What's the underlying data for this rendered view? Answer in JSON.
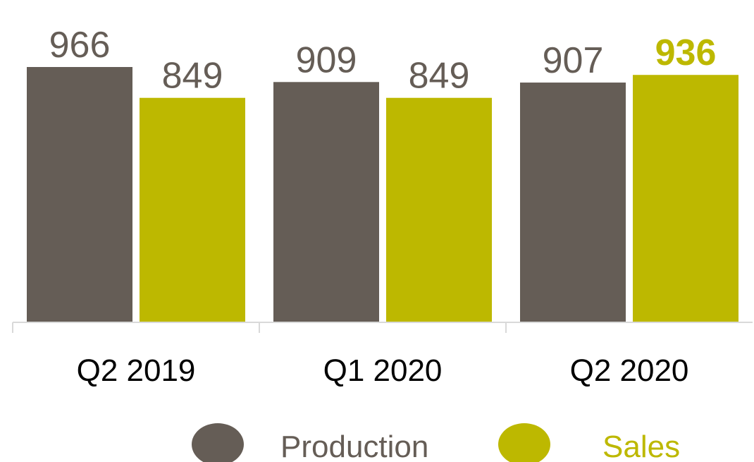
{
  "chart_data": {
    "type": "bar",
    "categories": [
      "Q2 2019",
      "Q1 2020",
      "Q2 2020"
    ],
    "series": [
      {
        "name": "Production",
        "values": [
          966,
          909,
          907
        ],
        "color": "#655D56"
      },
      {
        "name": "Sales",
        "values": [
          849,
          849,
          936
        ],
        "color": "#BDB800"
      }
    ],
    "data_labels": {
      "Production": [
        "966",
        "909",
        "907"
      ],
      "Sales": [
        "849",
        "849",
        "936"
      ]
    },
    "emphasized_label": {
      "series": "Sales",
      "category": "Q2 2020",
      "bold": true
    },
    "ylim": [
      0,
      966
    ],
    "grid": false,
    "legend": {
      "placement": "bottom",
      "marker": "circle",
      "items": [
        "Production",
        "Sales"
      ]
    },
    "axis_line_color": "#D9D9D9",
    "production_label_color": "#655D56"
  }
}
